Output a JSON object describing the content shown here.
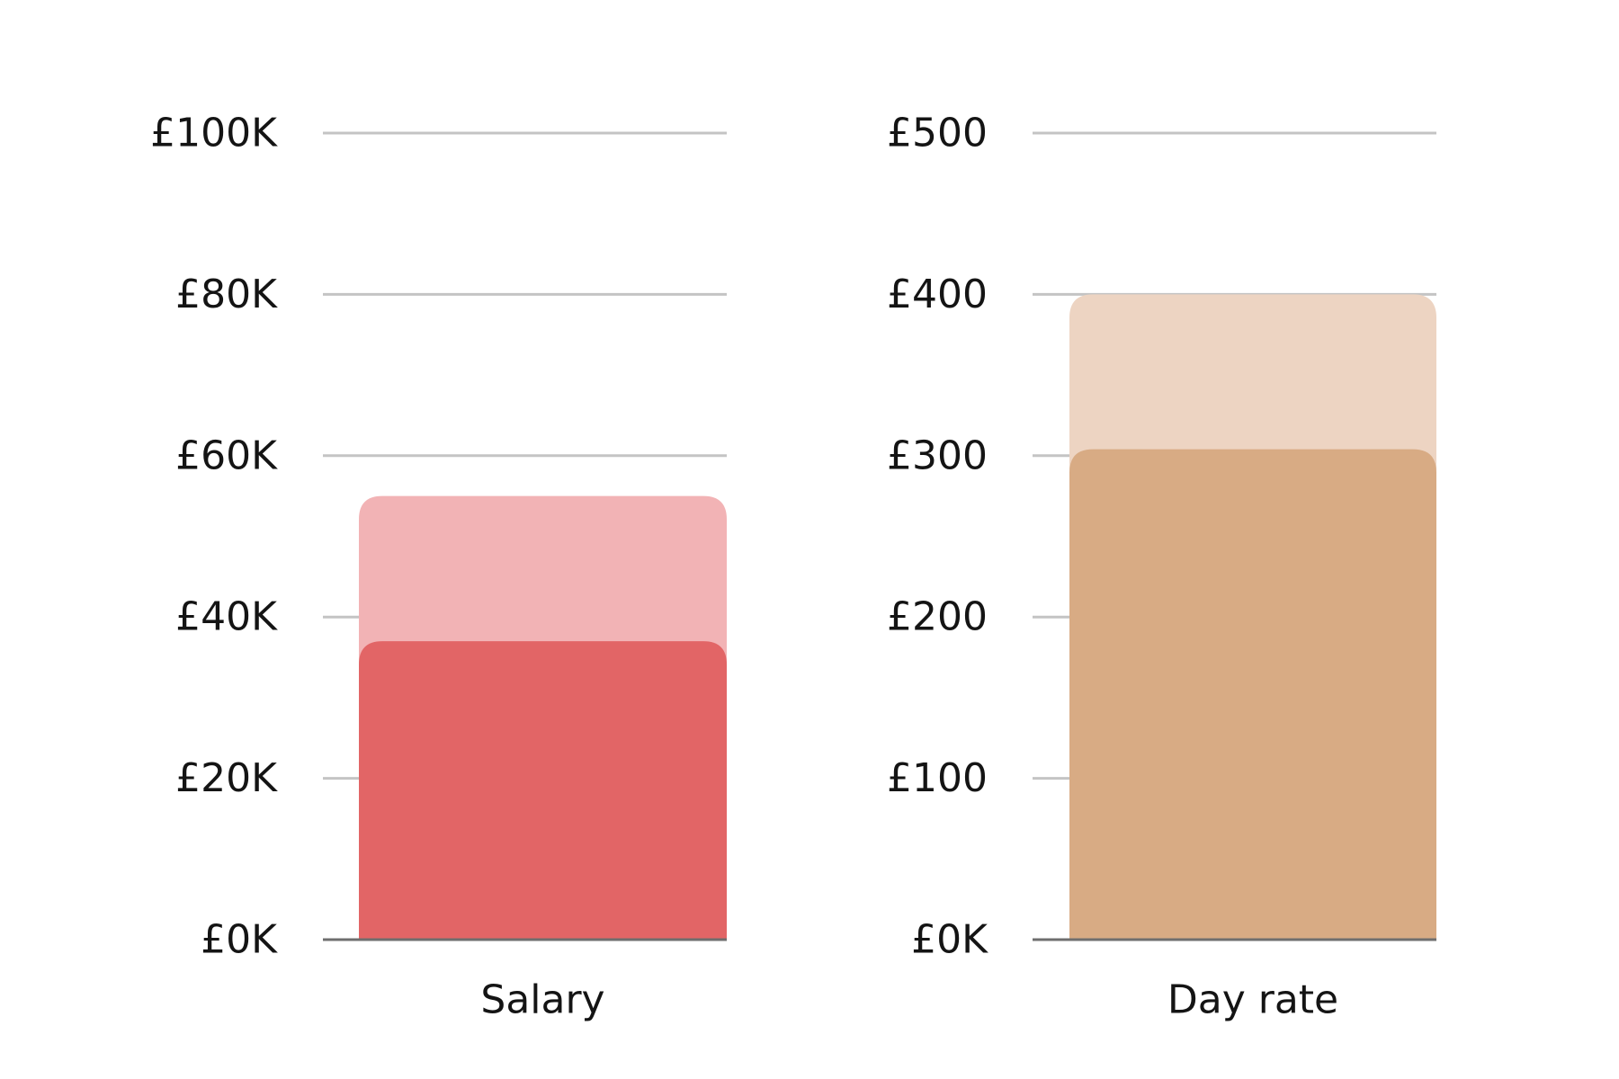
{
  "chart_data": [
    {
      "type": "bar",
      "categories": [
        "Salary"
      ],
      "series": [
        {
          "values": [
            55000
          ],
          "color": "#f2b3b5"
        },
        {
          "values": [
            37000
          ],
          "color": "#e26566"
        }
      ],
      "yticks": [
        "£0K",
        "£20K",
        "£40K",
        "£60K",
        "£80K",
        "£100K"
      ],
      "ylim": [
        0,
        100000
      ],
      "grid": true
    },
    {
      "type": "bar",
      "categories": [
        "Day rate"
      ],
      "series": [
        {
          "values": [
            400
          ],
          "color": "#edd4c2"
        },
        {
          "values": [
            304
          ],
          "color": "#d8ab84"
        }
      ],
      "yticks": [
        "£0K",
        "£100",
        "£200",
        "£300",
        "£400",
        "£500"
      ],
      "ylim": [
        0,
        500
      ],
      "grid": true
    }
  ]
}
